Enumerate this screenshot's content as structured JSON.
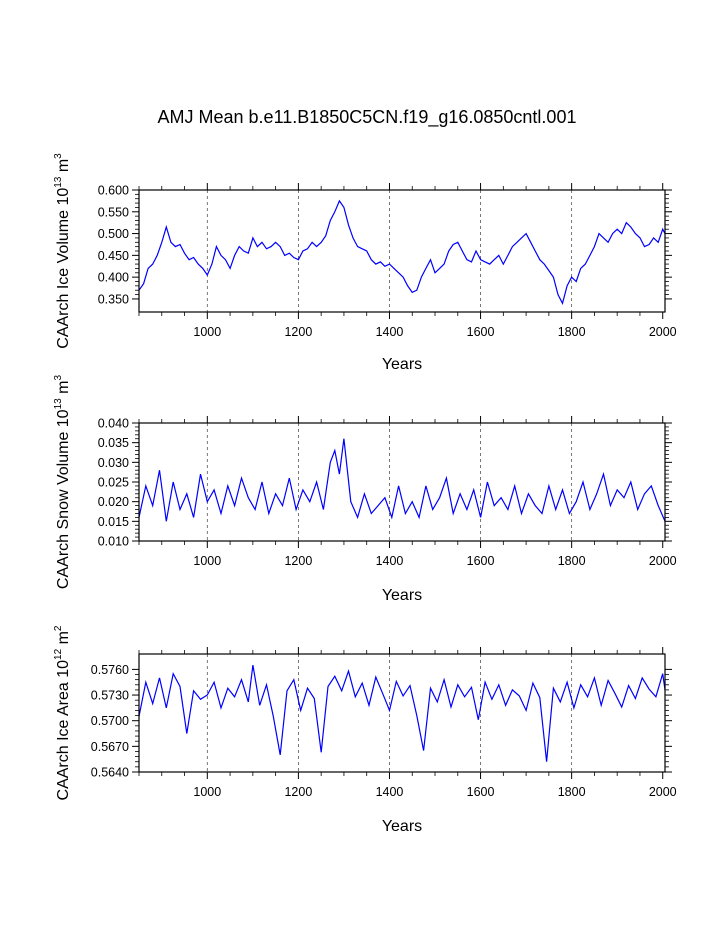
{
  "title": "AMJ Mean b.e11.B1850C5CN.f19_g16.0850cntl.001",
  "chart_data": [
    {
      "type": "line",
      "name": "ice-volume",
      "ylabel_prefix": "CAArch Ice Volume 10",
      "ylabel_exp": "13",
      "ylabel_unit": " m",
      "ylabel_unit_exp": "3",
      "xlabel": "Years",
      "xlim": [
        850,
        2005
      ],
      "ylim": [
        0.32,
        0.6
      ],
      "xticks": [
        1000,
        1200,
        1400,
        1600,
        1800,
        2000
      ],
      "yticks": [
        0.35,
        0.4,
        0.45,
        0.5,
        0.55,
        0.6
      ],
      "ytick_labels": [
        "0.350",
        "0.400",
        "0.450",
        "0.500",
        "0.550",
        "0.600"
      ],
      "grid_x": [
        1000,
        1200,
        1400,
        1600,
        1800
      ],
      "line_color": "#0000ff",
      "series": [
        {
          "name": "Ice Volume",
          "x": [
            850,
            860,
            870,
            880,
            890,
            900,
            910,
            920,
            930,
            940,
            950,
            960,
            970,
            980,
            990,
            1000,
            1010,
            1020,
            1030,
            1040,
            1050,
            1060,
            1070,
            1080,
            1090,
            1100,
            1110,
            1120,
            1130,
            1140,
            1150,
            1160,
            1170,
            1180,
            1190,
            1200,
            1210,
            1220,
            1230,
            1240,
            1250,
            1260,
            1270,
            1280,
            1290,
            1300,
            1310,
            1320,
            1330,
            1340,
            1350,
            1360,
            1370,
            1380,
            1390,
            1400,
            1410,
            1420,
            1430,
            1440,
            1450,
            1460,
            1470,
            1480,
            1490,
            1500,
            1510,
            1520,
            1530,
            1540,
            1550,
            1560,
            1570,
            1580,
            1590,
            1600,
            1610,
            1620,
            1630,
            1640,
            1650,
            1660,
            1670,
            1680,
            1690,
            1700,
            1710,
            1720,
            1730,
            1740,
            1750,
            1760,
            1770,
            1780,
            1790,
            1800,
            1810,
            1820,
            1830,
            1840,
            1850,
            1860,
            1870,
            1880,
            1890,
            1900,
            1910,
            1920,
            1930,
            1940,
            1950,
            1960,
            1970,
            1980,
            1990,
            2000,
            2005
          ],
          "y": [
            0.37,
            0.385,
            0.42,
            0.43,
            0.45,
            0.48,
            0.515,
            0.48,
            0.47,
            0.475,
            0.455,
            0.44,
            0.445,
            0.43,
            0.42,
            0.405,
            0.43,
            0.47,
            0.45,
            0.44,
            0.42,
            0.45,
            0.47,
            0.46,
            0.455,
            0.49,
            0.47,
            0.48,
            0.465,
            0.47,
            0.48,
            0.47,
            0.45,
            0.455,
            0.445,
            0.44,
            0.46,
            0.465,
            0.48,
            0.47,
            0.48,
            0.495,
            0.53,
            0.55,
            0.575,
            0.56,
            0.52,
            0.49,
            0.47,
            0.465,
            0.46,
            0.44,
            0.43,
            0.435,
            0.425,
            0.43,
            0.42,
            0.41,
            0.4,
            0.38,
            0.365,
            0.37,
            0.4,
            0.42,
            0.44,
            0.41,
            0.42,
            0.43,
            0.46,
            0.475,
            0.48,
            0.46,
            0.44,
            0.435,
            0.46,
            0.44,
            0.435,
            0.43,
            0.44,
            0.45,
            0.43,
            0.45,
            0.47,
            0.48,
            0.49,
            0.5,
            0.48,
            0.46,
            0.44,
            0.43,
            0.415,
            0.4,
            0.36,
            0.34,
            0.38,
            0.4,
            0.39,
            0.42,
            0.43,
            0.45,
            0.47,
            0.5,
            0.49,
            0.48,
            0.5,
            0.51,
            0.5,
            0.525,
            0.515,
            0.5,
            0.49,
            0.47,
            0.475,
            0.49,
            0.48,
            0.51,
            0.5
          ]
        }
      ]
    },
    {
      "type": "line",
      "name": "snow-volume",
      "ylabel_prefix": "CAArch Snow Volume 10",
      "ylabel_exp": "13",
      "ylabel_unit": " m",
      "ylabel_unit_exp": "3",
      "xlabel": "Years",
      "xlim": [
        850,
        2005
      ],
      "ylim": [
        0.01,
        0.04
      ],
      "xticks": [
        1000,
        1200,
        1400,
        1600,
        1800,
        2000
      ],
      "yticks": [
        0.01,
        0.015,
        0.02,
        0.025,
        0.03,
        0.035,
        0.04
      ],
      "ytick_labels": [
        "0.010",
        "0.015",
        "0.020",
        "0.025",
        "0.030",
        "0.035",
        "0.040"
      ],
      "grid_x": [
        1000,
        1200,
        1400,
        1600,
        1800
      ],
      "line_color": "#0000ff",
      "series": [
        {
          "name": "Snow Volume",
          "x": [
            850,
            865,
            880,
            895,
            910,
            925,
            940,
            955,
            970,
            985,
            1000,
            1015,
            1030,
            1045,
            1060,
            1075,
            1090,
            1105,
            1120,
            1135,
            1150,
            1165,
            1180,
            1195,
            1210,
            1225,
            1240,
            1255,
            1270,
            1280,
            1290,
            1300,
            1315,
            1330,
            1345,
            1360,
            1375,
            1390,
            1405,
            1420,
            1435,
            1450,
            1465,
            1480,
            1495,
            1510,
            1525,
            1540,
            1555,
            1570,
            1585,
            1600,
            1615,
            1630,
            1645,
            1660,
            1675,
            1690,
            1705,
            1720,
            1735,
            1750,
            1765,
            1780,
            1795,
            1810,
            1825,
            1840,
            1855,
            1870,
            1885,
            1900,
            1915,
            1930,
            1945,
            1960,
            1975,
            1990,
            2005
          ],
          "y": [
            0.016,
            0.024,
            0.019,
            0.028,
            0.015,
            0.025,
            0.018,
            0.022,
            0.016,
            0.027,
            0.02,
            0.023,
            0.017,
            0.024,
            0.019,
            0.026,
            0.021,
            0.018,
            0.025,
            0.017,
            0.022,
            0.019,
            0.026,
            0.018,
            0.023,
            0.02,
            0.025,
            0.018,
            0.03,
            0.033,
            0.027,
            0.036,
            0.02,
            0.016,
            0.022,
            0.017,
            0.019,
            0.021,
            0.016,
            0.024,
            0.017,
            0.02,
            0.016,
            0.024,
            0.018,
            0.021,
            0.026,
            0.017,
            0.022,
            0.018,
            0.023,
            0.016,
            0.025,
            0.019,
            0.021,
            0.018,
            0.024,
            0.017,
            0.022,
            0.019,
            0.017,
            0.024,
            0.018,
            0.023,
            0.017,
            0.02,
            0.025,
            0.018,
            0.022,
            0.027,
            0.019,
            0.023,
            0.021,
            0.025,
            0.018,
            0.022,
            0.024,
            0.019,
            0.015
          ]
        }
      ]
    },
    {
      "type": "line",
      "name": "ice-area",
      "ylabel_prefix": "CAArch Ice Area 10",
      "ylabel_exp": "12",
      "ylabel_unit": " m",
      "ylabel_unit_exp": "2",
      "xlabel": "Years",
      "xlim": [
        850,
        2005
      ],
      "ylim": [
        0.564,
        0.5778
      ],
      "xticks": [
        1000,
        1200,
        1400,
        1600,
        1800,
        2000
      ],
      "yticks": [
        0.564,
        0.567,
        0.57,
        0.573,
        0.576
      ],
      "ytick_labels": [
        "0.5640",
        "0.5670",
        "0.5700",
        "0.5730",
        "0.5760"
      ],
      "grid_x": [
        1000,
        1200,
        1400,
        1600,
        1800
      ],
      "line_color": "#0000ff",
      "series": [
        {
          "name": "Ice Area",
          "x": [
            850,
            865,
            880,
            895,
            910,
            925,
            940,
            955,
            970,
            985,
            1000,
            1015,
            1030,
            1045,
            1060,
            1075,
            1090,
            1100,
            1115,
            1130,
            1145,
            1160,
            1175,
            1190,
            1205,
            1220,
            1235,
            1250,
            1265,
            1280,
            1295,
            1310,
            1325,
            1340,
            1355,
            1370,
            1385,
            1400,
            1415,
            1430,
            1445,
            1460,
            1475,
            1490,
            1505,
            1520,
            1535,
            1550,
            1565,
            1580,
            1595,
            1610,
            1625,
            1640,
            1655,
            1670,
            1685,
            1700,
            1715,
            1730,
            1745,
            1760,
            1775,
            1790,
            1805,
            1820,
            1835,
            1850,
            1865,
            1880,
            1895,
            1910,
            1925,
            1940,
            1955,
            1970,
            1985,
            2000,
            2005
          ],
          "y": [
            0.5705,
            0.5745,
            0.572,
            0.575,
            0.5715,
            0.5755,
            0.574,
            0.5685,
            0.5735,
            0.5725,
            0.573,
            0.5745,
            0.5715,
            0.5738,
            0.5728,
            0.5748,
            0.5722,
            0.5765,
            0.5718,
            0.5742,
            0.5705,
            0.566,
            0.5735,
            0.5748,
            0.5712,
            0.5738,
            0.5726,
            0.5663,
            0.574,
            0.5752,
            0.5735,
            0.5758,
            0.5728,
            0.5744,
            0.5718,
            0.5751,
            0.5732,
            0.5712,
            0.5746,
            0.5729,
            0.5741,
            0.5706,
            0.5665,
            0.5738,
            0.5722,
            0.5748,
            0.5716,
            0.5742,
            0.5728,
            0.5739,
            0.5701,
            0.5745,
            0.5725,
            0.5742,
            0.5718,
            0.5736,
            0.5729,
            0.5712,
            0.5744,
            0.5727,
            0.5652,
            0.5738,
            0.5722,
            0.5745,
            0.5715,
            0.5742,
            0.5728,
            0.575,
            0.5718,
            0.5747,
            0.5732,
            0.5716,
            0.5741,
            0.5726,
            0.575,
            0.5737,
            0.5728,
            0.5755,
            0.5736
          ]
        }
      ]
    }
  ]
}
